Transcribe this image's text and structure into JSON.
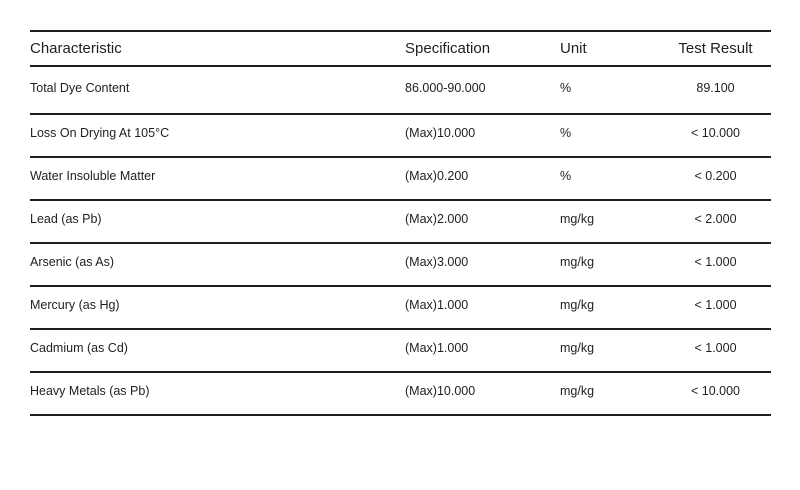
{
  "table": {
    "columns": [
      {
        "label": "Characteristic"
      },
      {
        "label": "Specification"
      },
      {
        "label": "Unit"
      },
      {
        "label": "Test Result"
      }
    ],
    "rows": [
      {
        "characteristic": "Total Dye Content",
        "specification": "86.000-90.000",
        "unit": "%",
        "test_result": "89.100"
      },
      {
        "characteristic": "Loss On Drying At 105°C",
        "specification": "(Max)10.000",
        "unit": "%",
        "test_result": "< 10.000"
      },
      {
        "characteristic": "Water Insoluble Matter",
        "specification": "(Max)0.200",
        "unit": "%",
        "test_result": "< 0.200"
      },
      {
        "characteristic": "Lead (as Pb)",
        "specification": "(Max)2.000",
        "unit": "mg/kg",
        "test_result": "< 2.000"
      },
      {
        "characteristic": "Arsenic (as As)",
        "specification": "(Max)3.000",
        "unit": "mg/kg",
        "test_result": "< 1.000"
      },
      {
        "characteristic": "Mercury (as Hg)",
        "specification": "(Max)1.000",
        "unit": "mg/kg",
        "test_result": "< 1.000"
      },
      {
        "characteristic": "Cadmium (as Cd)",
        "specification": "(Max)1.000",
        "unit": "mg/kg",
        "test_result": "< 1.000"
      },
      {
        "characteristic": "Heavy Metals (as Pb)",
        "specification": "(Max)10.000",
        "unit": "mg/kg",
        "test_result": "< 10.000"
      }
    ],
    "colors": {
      "text": "#1f1f1f",
      "line": "#1f1f1f",
      "background": "#ffffff"
    }
  }
}
